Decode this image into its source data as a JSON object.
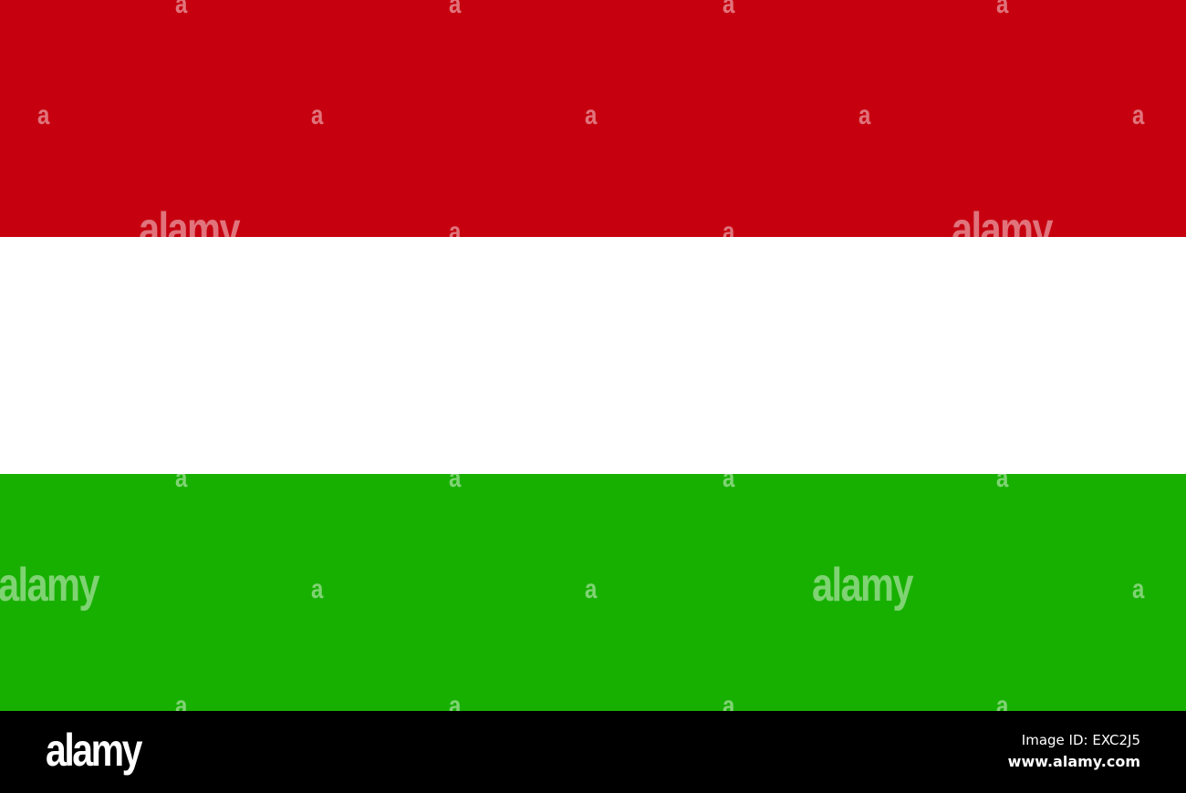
{
  "flag": {
    "colors": {
      "red": "#c6000f",
      "white": "#ffffff",
      "green": "#17b000"
    }
  },
  "watermark": {
    "mark": "a",
    "word": "alamy"
  },
  "footer": {
    "logo": "alamy",
    "image_id": "Image ID: EXC2J5",
    "url": "www.alamy.com"
  }
}
